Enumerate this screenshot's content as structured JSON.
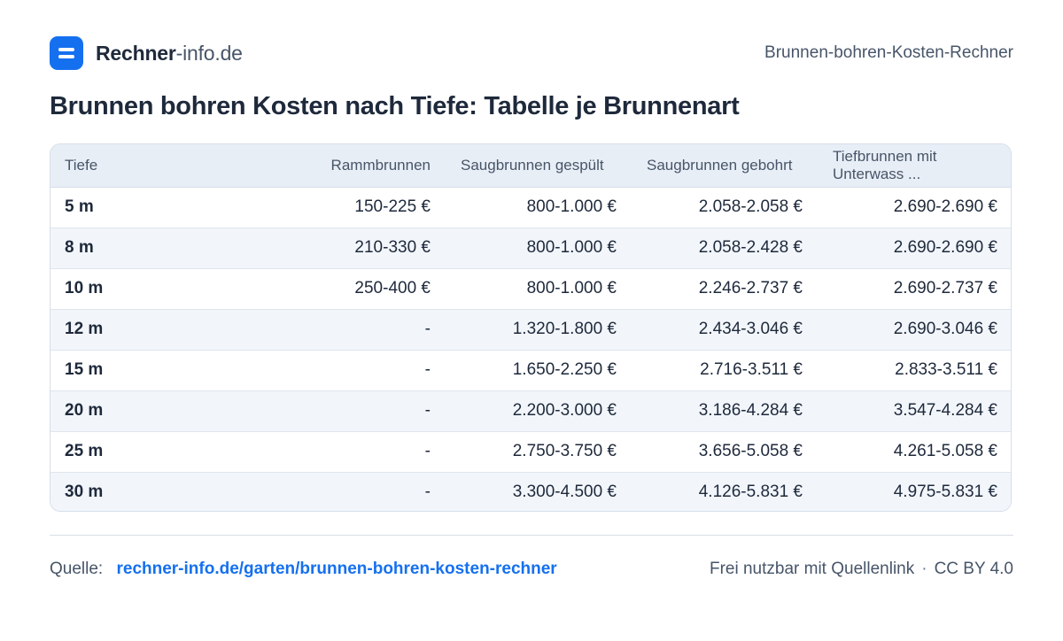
{
  "header": {
    "brand_bold": "Rechner",
    "brand_light": "-info.de",
    "calculator_name": "Brunnen-bohren-Kosten-Rechner"
  },
  "page_title": "Brunnen bohren Kosten nach Tiefe: Tabelle je Brunnenart",
  "table": {
    "columns": [
      "Tiefe",
      "Rammbrunnen",
      "Saugbrunnen gespült",
      "Saugbrunnen gebohrt",
      "Tiefbrunnen mit Unterwass ..."
    ],
    "rows": [
      [
        "5 m",
        "150-225 €",
        "800-1.000 €",
        "2.058-2.058 €",
        "2.690-2.690 €"
      ],
      [
        "8 m",
        "210-330 €",
        "800-1.000 €",
        "2.058-2.428 €",
        "2.690-2.690 €"
      ],
      [
        "10 m",
        "250-400 €",
        "800-1.000 €",
        "2.246-2.737 €",
        "2.690-2.737 €"
      ],
      [
        "12 m",
        "-",
        "1.320-1.800 €",
        "2.434-3.046 €",
        "2.690-3.046 €"
      ],
      [
        "15 m",
        "-",
        "1.650-2.250 €",
        "2.716-3.511 €",
        "2.833-3.511 €"
      ],
      [
        "20 m",
        "-",
        "2.200-3.000 €",
        "3.186-4.284 €",
        "3.547-4.284 €"
      ],
      [
        "25 m",
        "-",
        "2.750-3.750 €",
        "3.656-5.058 €",
        "4.261-5.058 €"
      ],
      [
        "30 m",
        "-",
        "3.300-4.500 €",
        "4.126-5.831 €",
        "4.975-5.831 €"
      ]
    ]
  },
  "footer": {
    "source_label": "Quelle:",
    "source_link": "rechner-info.de/garten/brunnen-bohren-kosten-rechner",
    "license_text": "Frei nutzbar mit Quellenlink",
    "separator": "·",
    "license_name": "CC BY 4.0"
  },
  "colors": {
    "accent": "#1570ef",
    "header_row_bg": "#e8eef6",
    "stripe_bg": "#f2f6fb"
  }
}
